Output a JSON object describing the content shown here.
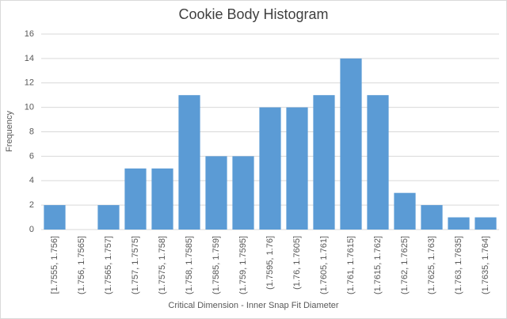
{
  "chart_data": {
    "type": "bar",
    "title": "Cookie Body Histogram",
    "x_label": "Critical Dimension - Inner Snap Fit Diameter",
    "y_label": "Frequency",
    "categories": [
      "[1.7555, 1.756]",
      "(1.756, 1.7565]",
      "(1.7565, 1.757]",
      "(1.757, 1.7575]",
      "(1.7575, 1.758]",
      "(1.758, 1.7585]",
      "(1.7585, 1.759]",
      "(1.759, 1.7595]",
      "(1.7595, 1.76]",
      "(1.76, 1.7605]",
      "(1.7605, 1.761]",
      "(1.761, 1.7615]",
      "(1.7615, 1.762]",
      "(1.762, 1.7625]",
      "(1.7625, 1.763]",
      "(1.763, 1.7635]",
      "(1.7635, 1.764]"
    ],
    "values": [
      2,
      0,
      2,
      5,
      5,
      11,
      6,
      6,
      10,
      10,
      11,
      14,
      11,
      3,
      2,
      1,
      1
    ],
    "color": "#5b9bd5",
    "ylim": [
      0,
      16
    ],
    "yticks": [
      0,
      2,
      4,
      6,
      8,
      10,
      12,
      14,
      16
    ],
    "grid": true
  }
}
